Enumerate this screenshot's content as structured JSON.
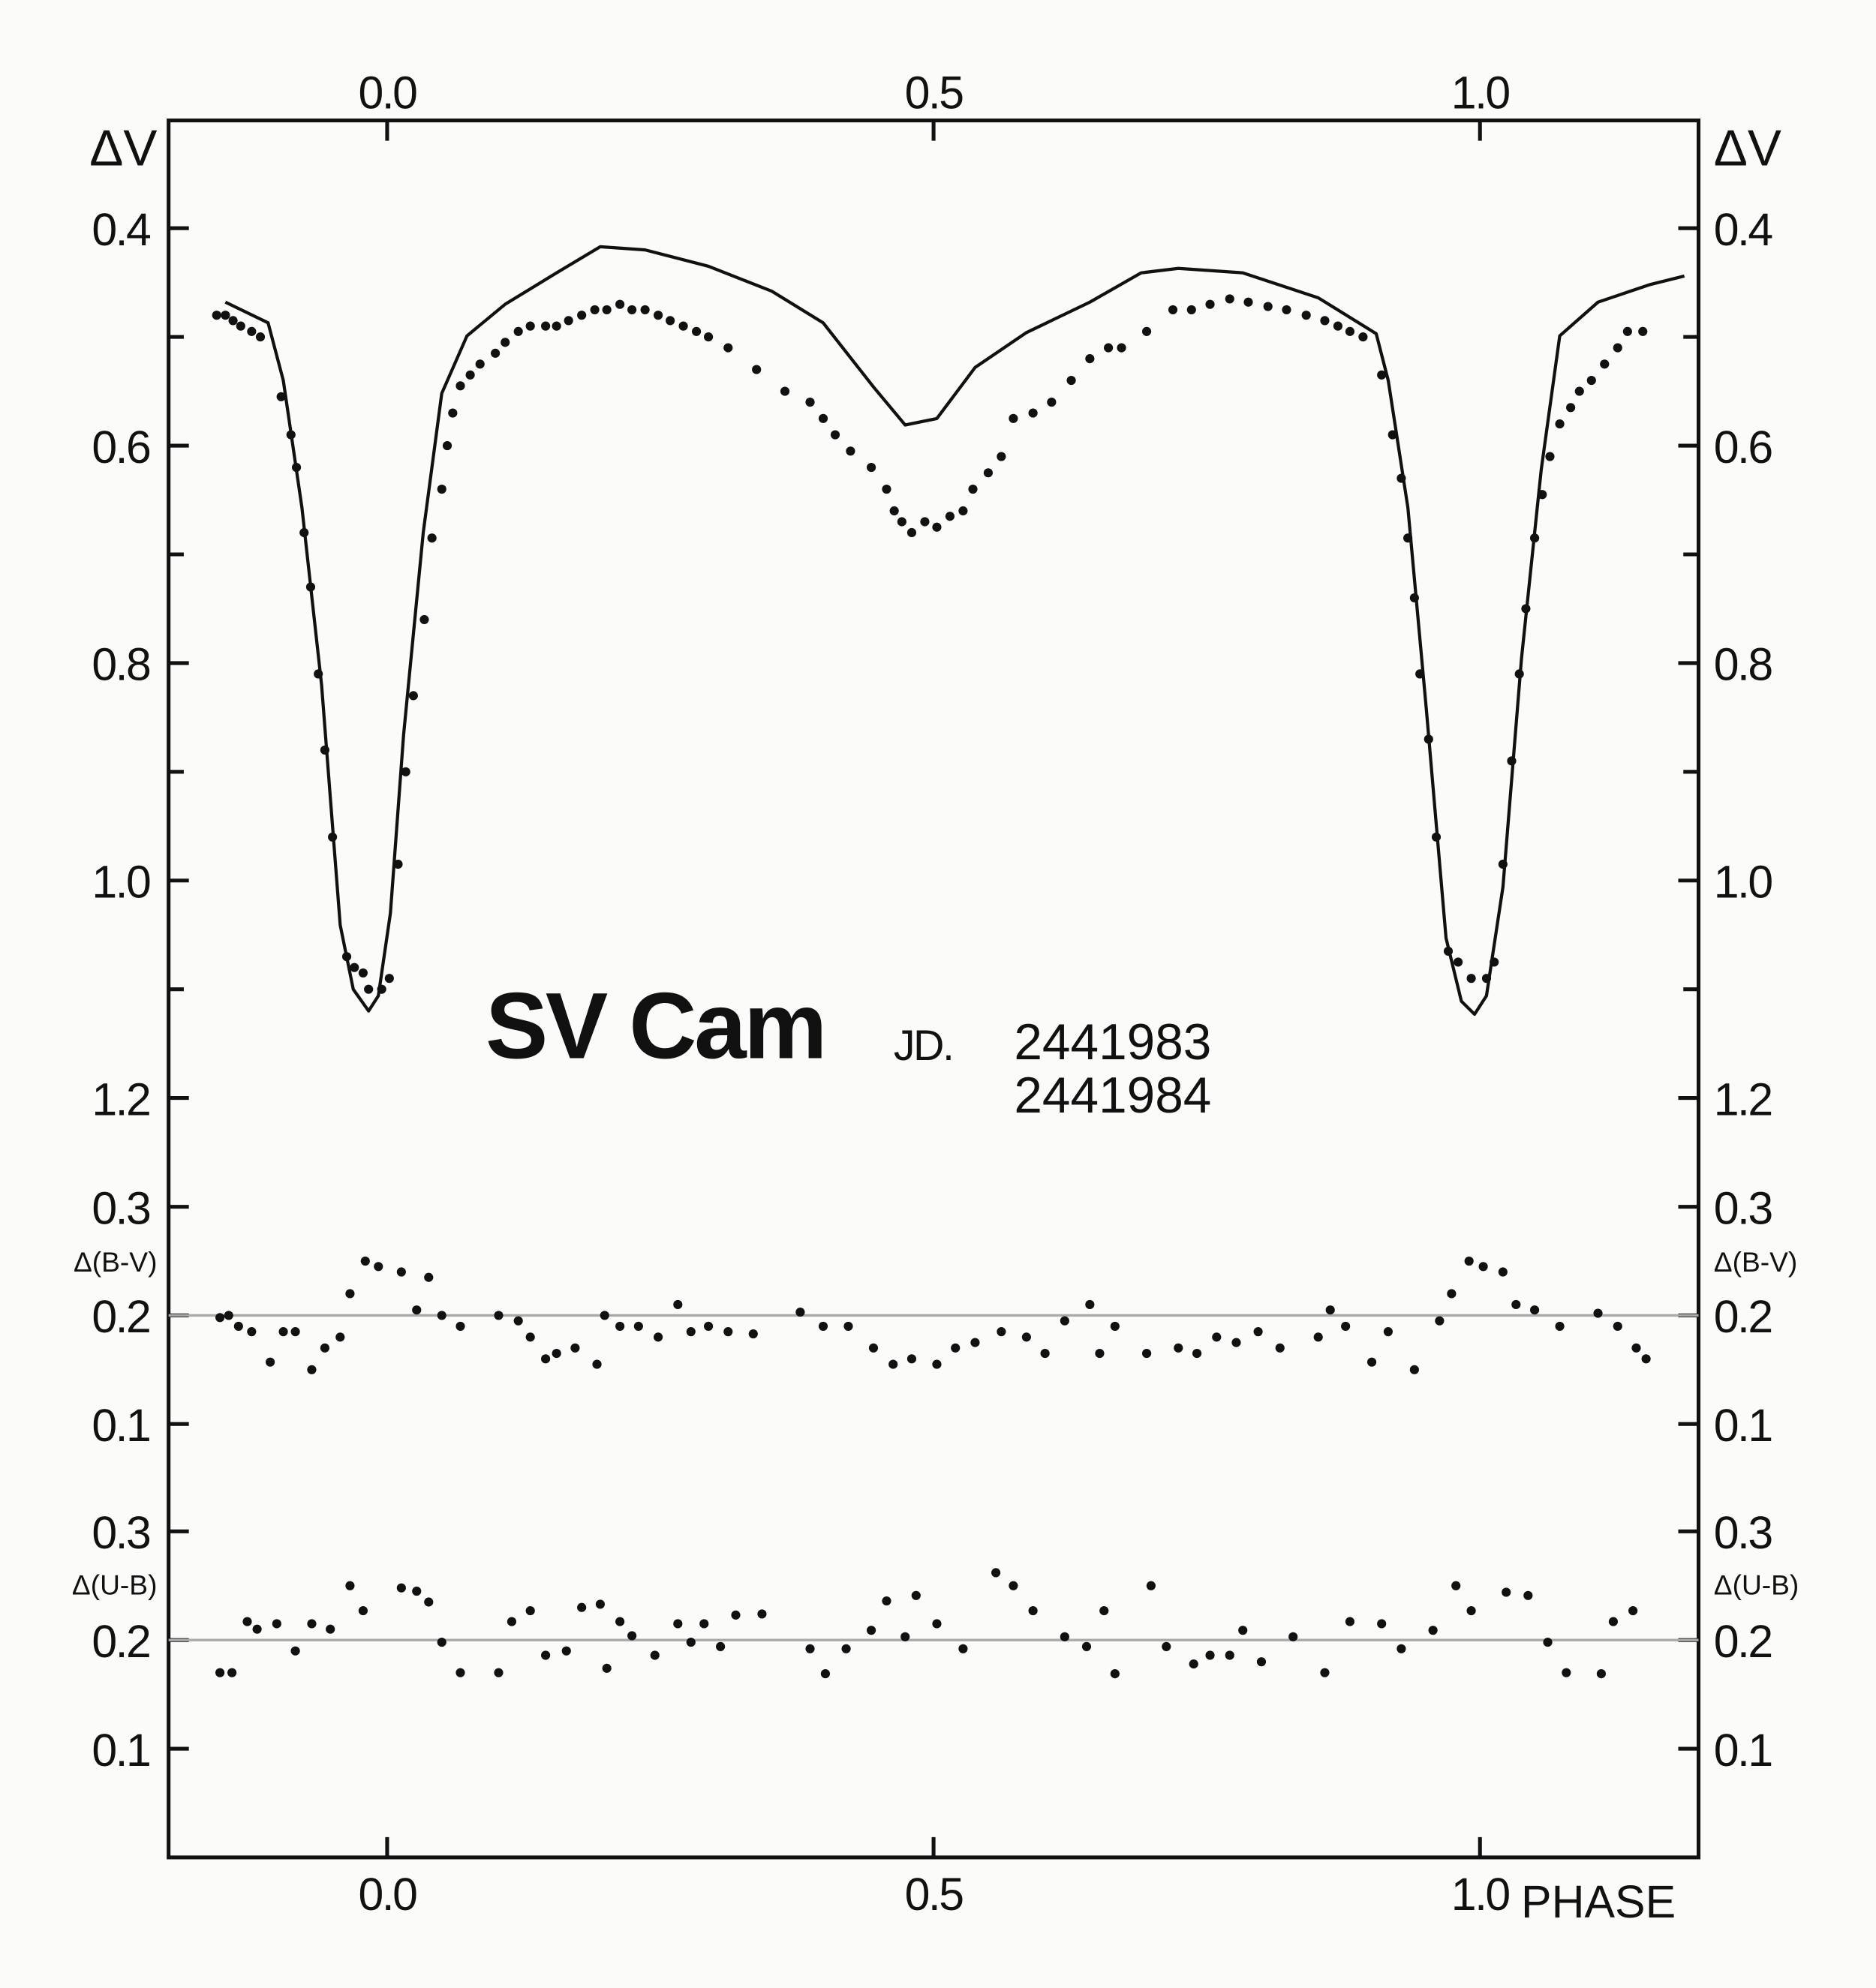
{
  "chart_data": [
    {
      "type": "scatter",
      "title": "SV Cam",
      "ylabel": "ΔV",
      "annotations": [
        "JD.",
        "2441983",
        "2441984"
      ],
      "xlim": [
        -0.2,
        1.2
      ],
      "xticks": [
        {
          "value": 0,
          "label": "0.0"
        },
        0.5,
        {
          "value": 1,
          "label": "1.0"
        }
      ],
      "ylim": [
        0.3,
        1.2
      ],
      "invert_y": true,
      "yticks": [
        0.4,
        0.6,
        0.8,
        {
          "value": 1,
          "label": "1.0"
        },
        1.2
      ],
      "yminorticks": [
        0.5,
        0.7,
        0.9,
        1.1
      ],
      "series": [
        {
          "kind": "points",
          "color": "#111111",
          "x": [
            -0.156,
            -0.148,
            -0.141,
            -0.134,
            -0.124,
            -0.116,
            -0.097,
            -0.088,
            -0.083,
            -0.076,
            -0.07,
            -0.063,
            -0.057,
            -0.05,
            -0.037,
            -0.03,
            -0.022,
            -0.017,
            -0.005,
            0.002,
            0.01,
            0.017,
            0.024,
            0.034,
            0.041,
            0.05,
            0.055,
            0.06,
            0.067,
            0.076,
            0.085,
            0.099,
            0.108,
            0.12,
            0.131,
            0.145,
            0.155,
            0.166,
            0.178,
            0.19,
            0.201,
            0.213,
            0.224,
            0.236,
            0.248,
            0.259,
            0.271,
            0.283,
            0.294,
            0.312,
            0.338,
            0.364,
            0.387,
            0.399,
            0.41,
            0.424,
            0.443,
            0.457,
            0.464,
            0.471,
            0.48,
            0.492,
            0.503,
            0.515,
            0.527,
            0.536,
            0.55,
            0.562,
            0.573,
            0.591,
            0.608,
            0.626,
            0.643,
            0.66,
            0.672,
            0.695,
            0.719,
            0.736,
            0.753,
            0.771,
            0.788,
            0.806,
            0.823,
            0.841,
            0.858,
            0.87,
            0.881,
            0.893,
            0.91,
            0.92,
            0.928,
            0.934,
            0.94,
            0.945,
            0.953,
            0.96,
            0.971,
            0.98,
            0.992,
            1.006,
            1.013,
            1.021,
            1.029,
            1.036,
            1.042,
            1.05,
            1.057,
            1.064,
            1.073,
            1.083,
            1.091,
            1.102,
            1.114,
            1.126,
            1.135,
            1.149
          ],
          "values": [
            0.48,
            0.48,
            0.485,
            0.49,
            0.495,
            0.5,
            0.555,
            0.59,
            0.62,
            0.68,
            0.73,
            0.81,
            0.88,
            0.96,
            1.07,
            1.08,
            1.085,
            1.1,
            1.1,
            1.09,
            0.985,
            0.9,
            0.83,
            0.76,
            0.685,
            0.64,
            0.6,
            0.57,
            0.545,
            0.535,
            0.525,
            0.515,
            0.505,
            0.495,
            0.49,
            0.49,
            0.49,
            0.485,
            0.48,
            0.475,
            0.475,
            0.47,
            0.475,
            0.475,
            0.48,
            0.485,
            0.49,
            0.495,
            0.5,
            0.51,
            0.53,
            0.55,
            0.56,
            0.575,
            0.59,
            0.605,
            0.62,
            0.64,
            0.66,
            0.67,
            0.68,
            0.67,
            0.675,
            0.665,
            0.66,
            0.64,
            0.625,
            0.61,
            0.575,
            0.57,
            0.56,
            0.54,
            0.52,
            0.51,
            0.51,
            0.495,
            0.475,
            0.475,
            0.47,
            0.465,
            0.468,
            0.472,
            0.475,
            0.48,
            0.485,
            0.49,
            0.495,
            0.5,
            0.535,
            0.59,
            0.63,
            0.685,
            0.74,
            0.81,
            0.87,
            0.96,
            1.065,
            1.075,
            1.09,
            1.09,
            1.075,
            0.985,
            0.89,
            0.81,
            0.75,
            0.685,
            0.645,
            0.61,
            0.58,
            0.565,
            0.55,
            0.54,
            0.525,
            0.51,
            0.495,
            0.495
          ]
        },
        {
          "kind": "line",
          "color": "#111111",
          "x": [
            -0.148,
            -0.109,
            -0.095,
            -0.078,
            -0.06,
            -0.043,
            -0.031,
            -0.017,
            -0.008,
            0.003,
            0.015,
            0.033,
            0.05,
            0.073,
            0.108,
            0.155,
            0.195,
            0.236,
            0.294,
            0.352,
            0.399,
            0.445,
            0.474,
            0.503,
            0.538,
            0.585,
            0.643,
            0.69,
            0.724,
            0.783,
            0.852,
            0.905,
            0.916,
            0.934,
            0.951,
            0.969,
            0.983,
            0.995,
            1.006,
            1.021,
            1.038,
            1.056,
            1.073,
            1.108,
            1.155,
            1.187
          ],
          "values": [
            0.468,
            0.487,
            0.54,
            0.657,
            0.82,
            1.041,
            1.1,
            1.12,
            1.106,
            1.03,
            0.866,
            0.68,
            0.552,
            0.499,
            0.47,
            0.441,
            0.417,
            0.42,
            0.435,
            0.458,
            0.487,
            0.546,
            0.581,
            0.575,
            0.528,
            0.496,
            0.468,
            0.441,
            0.437,
            0.441,
            0.464,
            0.497,
            0.54,
            0.657,
            0.843,
            1.053,
            1.111,
            1.123,
            1.106,
            1.006,
            0.796,
            0.622,
            0.499,
            0.468,
            0.452,
            0.444
          ]
        }
      ]
    },
    {
      "type": "scatter",
      "ylabel": "Δ(B-V)",
      "xlim": [
        -0.2,
        1.2
      ],
      "ylim": [
        0.05,
        0.35
      ],
      "yticks": [
        0.3,
        0.2,
        0.1
      ],
      "reference_line": 0.2,
      "series": [
        {
          "kind": "points",
          "color": "#111111",
          "x": [
            -0.153,
            -0.145,
            -0.136,
            -0.124,
            -0.107,
            -0.095,
            -0.084,
            -0.069,
            -0.057,
            -0.043,
            -0.034,
            -0.02,
            -0.008,
            0.013,
            0.027,
            0.038,
            0.05,
            0.067,
            0.102,
            0.12,
            0.131,
            0.145,
            0.155,
            0.172,
            0.192,
            0.199,
            0.213,
            0.23,
            0.248,
            0.266,
            0.278,
            0.294,
            0.312,
            0.335,
            0.378,
            0.399,
            0.422,
            0.445,
            0.463,
            0.48,
            0.503,
            0.52,
            0.538,
            0.562,
            0.585,
            0.602,
            0.62,
            0.643,
            0.652,
            0.666,
            0.695,
            0.724,
            0.741,
            0.759,
            0.777,
            0.797,
            0.817,
            0.852,
            0.863,
            0.877,
            0.901,
            0.916,
            0.94,
            0.963,
            0.974,
            0.99,
            1.003,
            1.021,
            1.033,
            1.05,
            1.073,
            1.108,
            1.126,
            1.143,
            1.152
          ],
          "values": [
            0.198,
            0.2,
            0.19,
            0.185,
            0.157,
            0.185,
            0.185,
            0.15,
            0.17,
            0.18,
            0.22,
            0.25,
            0.245,
            0.24,
            0.205,
            0.235,
            0.2,
            0.19,
            0.2,
            0.195,
            0.18,
            0.16,
            0.165,
            0.17,
            0.155,
            0.2,
            0.19,
            0.19,
            0.18,
            0.21,
            0.185,
            0.19,
            0.185,
            0.183,
            0.203,
            0.19,
            0.19,
            0.17,
            0.155,
            0.16,
            0.155,
            0.17,
            0.175,
            0.185,
            0.18,
            0.165,
            0.195,
            0.21,
            0.165,
            0.19,
            0.165,
            0.17,
            0.165,
            0.18,
            0.175,
            0.185,
            0.17,
            0.18,
            0.205,
            0.19,
            0.157,
            0.185,
            0.15,
            0.195,
            0.22,
            0.25,
            0.245,
            0.24,
            0.21,
            0.205,
            0.19,
            0.202,
            0.19,
            0.17,
            0.16
          ]
        }
      ]
    },
    {
      "type": "scatter",
      "ylabel": "Δ(U-B)",
      "xlabel": "PHASE",
      "xlim": [
        -0.2,
        1.2
      ],
      "xticks": [
        {
          "value": 0,
          "label": "0.0"
        },
        0.5,
        {
          "value": 1,
          "label": "1.0"
        }
      ],
      "ylim": [
        0,
        0.35
      ],
      "yticks": [
        0.3,
        0.2,
        0.1
      ],
      "reference_line": 0.2,
      "series": [
        {
          "kind": "points",
          "color": "#111111",
          "x": [
            -0.153,
            -0.142,
            -0.128,
            -0.119,
            -0.101,
            -0.084,
            -0.069,
            -0.052,
            -0.034,
            -0.022,
            0.013,
            0.027,
            0.038,
            0.05,
            0.067,
            0.102,
            0.114,
            0.131,
            0.145,
            0.164,
            0.178,
            0.195,
            0.201,
            0.213,
            0.224,
            0.245,
            0.266,
            0.278,
            0.29,
            0.305,
            0.319,
            0.343,
            0.387,
            0.401,
            0.42,
            0.443,
            0.457,
            0.474,
            0.484,
            0.503,
            0.527,
            0.557,
            0.573,
            0.591,
            0.62,
            0.64,
            0.656,
            0.666,
            0.699,
            0.713,
            0.738,
            0.753,
            0.771,
            0.783,
            0.8,
            0.829,
            0.858,
            0.881,
            0.91,
            0.928,
            0.957,
            0.978,
            0.992,
            1.024,
            1.044,
            1.062,
            1.079,
            1.111,
            1.122,
            1.14
          ],
          "values": [
            0.17,
            0.17,
            0.217,
            0.21,
            0.215,
            0.19,
            0.215,
            0.21,
            0.25,
            0.227,
            0.248,
            0.245,
            0.235,
            0.198,
            0.17,
            0.17,
            0.217,
            0.227,
            0.186,
            0.19,
            0.23,
            0.233,
            0.174,
            0.217,
            0.204,
            0.186,
            0.215,
            0.198,
            0.215,
            0.194,
            0.223,
            0.224,
            0.192,
            0.169,
            0.192,
            0.209,
            0.236,
            0.203,
            0.241,
            0.215,
            0.192,
            0.262,
            0.25,
            0.227,
            0.203,
            0.194,
            0.227,
            0.169,
            0.25,
            0.194,
            0.178,
            0.186,
            0.186,
            0.209,
            0.18,
            0.203,
            0.17,
            0.217,
            0.215,
            0.192,
            0.209,
            0.25,
            0.227,
            0.244,
            0.241,
            0.198,
            0.17,
            0.169,
            0.217,
            0.227
          ]
        }
      ]
    }
  ]
}
